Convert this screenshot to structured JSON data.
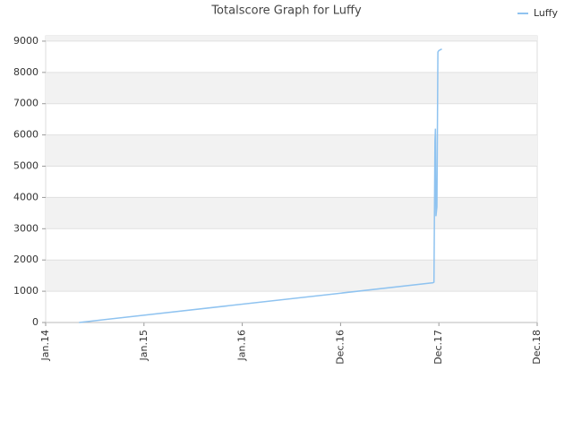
{
  "chart_data": {
    "type": "line",
    "title": "Totalscore Graph for Luffy",
    "x": [
      0.34,
      3.94,
      3.95,
      3.96,
      3.965,
      3.97,
      3.98,
      3.99,
      4.0,
      4.03
    ],
    "series": [
      {
        "name": "Luffy",
        "color": "#8fc3f0",
        "values": [
          0,
          1270,
          1290,
          5800,
          6200,
          3400,
          3700,
          8650,
          8700,
          8750
        ]
      }
    ],
    "xlim": [
      0,
      5
    ],
    "xticks": [
      {
        "value": 0,
        "label": "Jan.14"
      },
      {
        "value": 1,
        "label": "Jan.15"
      },
      {
        "value": 2,
        "label": "Jan.16"
      },
      {
        "value": 3,
        "label": "Dec.16"
      },
      {
        "value": 4,
        "label": "Dec.17"
      },
      {
        "value": 5,
        "label": "Dec.18"
      }
    ],
    "ylim": [
      0,
      9170
    ],
    "yticks": [
      0,
      1000,
      2000,
      3000,
      4000,
      5000,
      6000,
      7000,
      8000,
      9000
    ],
    "grid": true,
    "legend": "top-right"
  }
}
